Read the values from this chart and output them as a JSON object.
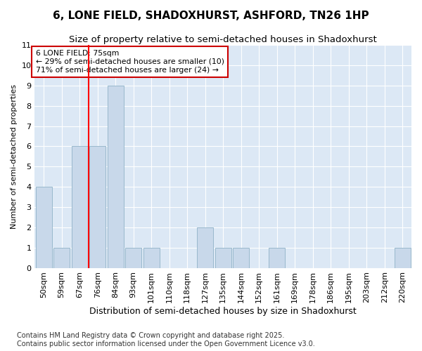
{
  "title": "6, LONE FIELD, SHADOXHURST, ASHFORD, TN26 1HP",
  "subtitle": "Size of property relative to semi-detached houses in Shadoxhurst",
  "xlabel": "Distribution of semi-detached houses by size in Shadoxhurst",
  "ylabel": "Number of semi-detached properties",
  "categories": [
    "50sqm",
    "59sqm",
    "67sqm",
    "76sqm",
    "84sqm",
    "93sqm",
    "101sqm",
    "110sqm",
    "118sqm",
    "127sqm",
    "135sqm",
    "144sqm",
    "152sqm",
    "161sqm",
    "169sqm",
    "178sqm",
    "186sqm",
    "195sqm",
    "203sqm",
    "212sqm",
    "220sqm"
  ],
  "values": [
    4,
    1,
    6,
    6,
    9,
    1,
    1,
    0,
    0,
    2,
    1,
    1,
    0,
    1,
    0,
    0,
    0,
    0,
    0,
    0,
    1
  ],
  "bar_color": "#c8d8ea",
  "bar_edge_color": "#99b8cc",
  "reference_line_x": 3,
  "annotation_title": "6 LONE FIELD: 75sqm",
  "annotation_line1": "← 29% of semi-detached houses are smaller (10)",
  "annotation_line2": "71% of semi-detached houses are larger (24) →",
  "ylim": [
    0,
    11
  ],
  "yticks": [
    0,
    1,
    2,
    3,
    4,
    5,
    6,
    7,
    8,
    9,
    10,
    11
  ],
  "fig_bg_color": "#ffffff",
  "plot_bg_color": "#dce8f5",
  "grid_color": "#ffffff",
  "footnote": "Contains HM Land Registry data © Crown copyright and database right 2025.\nContains public sector information licensed under the Open Government Licence v3.0.",
  "title_fontsize": 11,
  "subtitle_fontsize": 9.5,
  "xlabel_fontsize": 9,
  "ylabel_fontsize": 8,
  "tick_fontsize": 8,
  "footnote_fontsize": 7
}
